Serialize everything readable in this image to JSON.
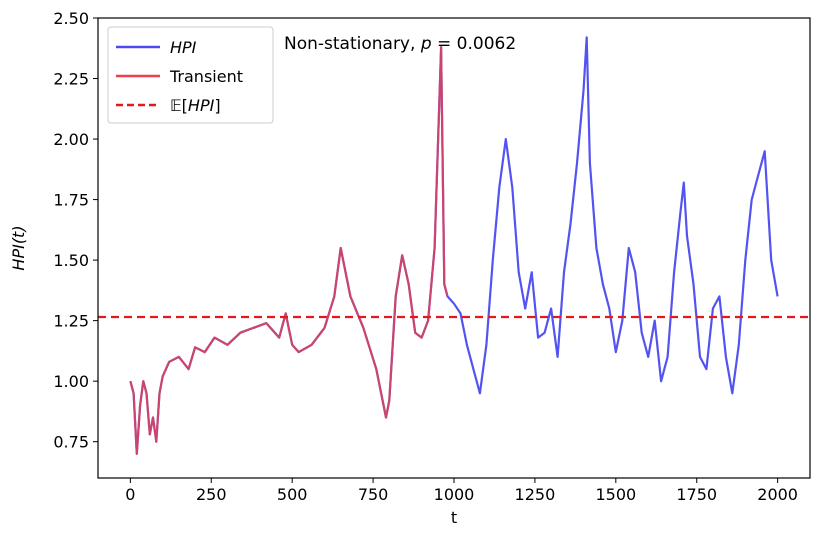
{
  "chart_data": {
    "type": "line",
    "title": "",
    "xlabel": "t",
    "ylabel": "HPI(t)",
    "xlim": [
      -100,
      2100
    ],
    "ylim": [
      0.6,
      2.5
    ],
    "xticks": [
      0,
      250,
      500,
      750,
      1000,
      1250,
      1500,
      1750,
      2000
    ],
    "yticks": [
      0.75,
      1.0,
      1.25,
      1.5,
      1.75,
      2.0,
      2.25,
      2.5
    ],
    "xtick_labels": [
      "0",
      "250",
      "500",
      "750",
      "1000",
      "1250",
      "1500",
      "1750",
      "2000"
    ],
    "ytick_labels": [
      "0.75",
      "1.00",
      "1.25",
      "1.50",
      "1.75",
      "2.00",
      "2.25",
      "2.50"
    ],
    "grid": false,
    "legend_position": "top-left",
    "annotation": "Non-stationary, p = 0.0062",
    "annotation_parts": {
      "prefix": "Non-stationary, ",
      "var": "p",
      "rest": " = 0.0062"
    },
    "mean_line": {
      "name": "𝔼[HPI]",
      "name_parts": {
        "pre": "𝔼[",
        "var": "HPI",
        "post": "]"
      },
      "value": 1.265,
      "color": "#e31a1c",
      "style": "dashed"
    },
    "series": [
      {
        "name": "HPI",
        "color": "#4a4af0",
        "x": [
          0,
          10,
          20,
          30,
          40,
          50,
          60,
          70,
          80,
          90,
          100,
          120,
          150,
          180,
          200,
          230,
          260,
          300,
          340,
          380,
          420,
          460,
          480,
          500,
          520,
          560,
          600,
          630,
          650,
          680,
          720,
          760,
          790,
          800,
          820,
          840,
          860,
          880,
          900,
          920,
          940,
          960,
          970,
          980,
          1000,
          1020,
          1040,
          1060,
          1080,
          1100,
          1120,
          1140,
          1160,
          1180,
          1200,
          1220,
          1240,
          1260,
          1280,
          1300,
          1320,
          1340,
          1360,
          1380,
          1400,
          1410,
          1420,
          1440,
          1460,
          1480,
          1500,
          1520,
          1540,
          1560,
          1580,
          1600,
          1620,
          1640,
          1660,
          1680,
          1700,
          1710,
          1720,
          1740,
          1760,
          1780,
          1800,
          1820,
          1840,
          1860,
          1880,
          1900,
          1920,
          1940,
          1960,
          1980,
          2000
        ],
        "y": [
          1.0,
          0.95,
          0.7,
          0.9,
          1.0,
          0.95,
          0.78,
          0.85,
          0.75,
          0.95,
          1.02,
          1.08,
          1.1,
          1.05,
          1.14,
          1.12,
          1.18,
          1.15,
          1.2,
          1.22,
          1.24,
          1.18,
          1.28,
          1.15,
          1.12,
          1.15,
          1.22,
          1.35,
          1.55,
          1.35,
          1.22,
          1.05,
          0.85,
          0.92,
          1.35,
          1.52,
          1.4,
          1.2,
          1.18,
          1.25,
          1.55,
          2.38,
          1.4,
          1.35,
          1.32,
          1.28,
          1.15,
          1.05,
          0.95,
          1.15,
          1.5,
          1.8,
          2.0,
          1.8,
          1.45,
          1.3,
          1.45,
          1.18,
          1.2,
          1.3,
          1.1,
          1.45,
          1.65,
          1.9,
          2.2,
          2.42,
          1.9,
          1.55,
          1.4,
          1.3,
          1.12,
          1.25,
          1.55,
          1.45,
          1.2,
          1.1,
          1.25,
          1.0,
          1.1,
          1.45,
          1.7,
          1.82,
          1.6,
          1.4,
          1.1,
          1.05,
          1.3,
          1.35,
          1.1,
          0.95,
          1.15,
          1.5,
          1.75,
          1.85,
          1.95,
          1.5,
          1.35
        ]
      },
      {
        "name": "Transient",
        "color": "#e8414d",
        "x": [
          0,
          10,
          20,
          30,
          40,
          50,
          60,
          70,
          80,
          90,
          100,
          120,
          150,
          180,
          200,
          230,
          260,
          300,
          340,
          380,
          420,
          460,
          480,
          500,
          520,
          560,
          600,
          630,
          650,
          680,
          720,
          760,
          790,
          800,
          820,
          840,
          860,
          880,
          900,
          920,
          940,
          960,
          970,
          980
        ],
        "y": [
          1.0,
          0.95,
          0.7,
          0.9,
          1.0,
          0.95,
          0.78,
          0.85,
          0.75,
          0.95,
          1.02,
          1.08,
          1.1,
          1.05,
          1.14,
          1.12,
          1.18,
          1.15,
          1.2,
          1.22,
          1.24,
          1.18,
          1.28,
          1.15,
          1.12,
          1.15,
          1.22,
          1.35,
          1.55,
          1.35,
          1.22,
          1.05,
          0.85,
          0.92,
          1.35,
          1.52,
          1.4,
          1.2,
          1.18,
          1.25,
          1.55,
          2.38,
          1.4,
          1.35
        ]
      }
    ]
  }
}
